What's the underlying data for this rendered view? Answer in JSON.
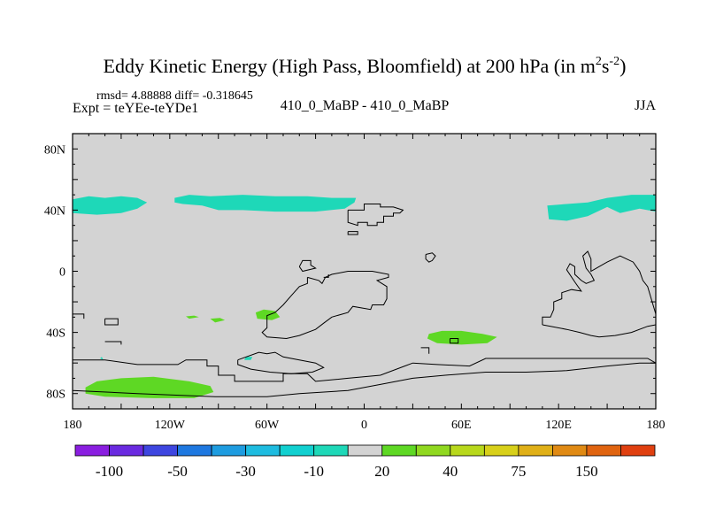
{
  "chart_data": {
    "type": "heatmap",
    "title": "Eddy Kinetic Energy (High Pass, Bloomfield) at 200 hPa (in m",
    "title_units_sup1": "2",
    "title_units_mid": "s",
    "title_units_sup2": "-2",
    "title_close": ")",
    "stats_text": "rmsd= 4.88888 diff= -0.318645",
    "expt_text": "Expt = teYEe-teYDe1",
    "center_label": "410_0_MaBP - 410_0_MaBP",
    "season": "JJA",
    "xlim": [
      -180,
      180
    ],
    "ylim": [
      -90,
      90
    ],
    "x_ticks": [
      {
        "value": -180,
        "label": "180"
      },
      {
        "value": -120,
        "label": "120W"
      },
      {
        "value": -60,
        "label": "60W"
      },
      {
        "value": 0,
        "label": "0"
      },
      {
        "value": 60,
        "label": "60E"
      },
      {
        "value": 120,
        "label": "120E"
      },
      {
        "value": 180,
        "label": "180"
      }
    ],
    "y_ticks": [
      {
        "value": 80,
        "label": "80N"
      },
      {
        "value": 40,
        "label": "40N"
      },
      {
        "value": 0,
        "label": "0"
      },
      {
        "value": -40,
        "label": "40S"
      },
      {
        "value": -80,
        "label": "80S"
      }
    ],
    "background_color": "#d3d3d3",
    "colorbar": {
      "colors": [
        "#8a1ee0",
        "#6a2ae0",
        "#3e46e0",
        "#1e78e0",
        "#1e9ce0",
        "#1ebce0",
        "#12d0d0",
        "#1ed8b8",
        "#d3d3d3",
        "#5ed824",
        "#90d820",
        "#b8d81c",
        "#d8d01a",
        "#e0b018",
        "#e08a14",
        "#e06410",
        "#e04010"
      ],
      "labels": [
        {
          "after_box": 1,
          "label": "-100"
        },
        {
          "after_box": 3,
          "label": "-50"
        },
        {
          "after_box": 5,
          "label": "-30"
        },
        {
          "after_box": 7,
          "label": "-10"
        },
        {
          "after_box": 9,
          "label": "20"
        },
        {
          "after_box": 11,
          "label": "40"
        },
        {
          "after_box": 13,
          "label": "75"
        },
        {
          "after_box": 15,
          "label": "150"
        }
      ]
    },
    "anomaly_regions": [
      {
        "name": "nh-band-west-pacific",
        "color": "#1ed8b8",
        "points": [
          [
            -180,
            47
          ],
          [
            -170,
            49
          ],
          [
            -160,
            48
          ],
          [
            -150,
            49
          ],
          [
            -140,
            48
          ],
          [
            -134,
            45
          ],
          [
            -140,
            41
          ],
          [
            -150,
            38
          ],
          [
            -165,
            37
          ],
          [
            -180,
            38
          ]
        ]
      },
      {
        "name": "nh-band-north-america",
        "color": "#1ed8b8",
        "points": [
          [
            -117,
            48
          ],
          [
            -108,
            50
          ],
          [
            -95,
            49
          ],
          [
            -75,
            50
          ],
          [
            -55,
            49
          ],
          [
            -35,
            49
          ],
          [
            -20,
            48
          ],
          [
            -5,
            48
          ],
          [
            -6,
            45
          ],
          [
            -12,
            41
          ],
          [
            -30,
            39
          ],
          [
            -55,
            39
          ],
          [
            -75,
            40
          ],
          [
            -90,
            40
          ],
          [
            -100,
            43
          ],
          [
            -112,
            44
          ],
          [
            -117,
            45
          ]
        ]
      },
      {
        "name": "nh-band-east-pacific",
        "color": "#1ed8b8",
        "points": [
          [
            113,
            43
          ],
          [
            125,
            44
          ],
          [
            138,
            45
          ],
          [
            150,
            48
          ],
          [
            165,
            50
          ],
          [
            180,
            50
          ],
          [
            180,
            39
          ],
          [
            170,
            41
          ],
          [
            158,
            38
          ],
          [
            150,
            42
          ],
          [
            138,
            36
          ],
          [
            125,
            33
          ],
          [
            114,
            34
          ]
        ]
      },
      {
        "name": "sh-patch-atlantic",
        "color": "#5ed824",
        "points": [
          [
            -67,
            -27
          ],
          [
            -62,
            -25
          ],
          [
            -55,
            -26
          ],
          [
            -52,
            -30
          ],
          [
            -57,
            -32
          ],
          [
            -66,
            -31
          ]
        ]
      },
      {
        "name": "sh-dot-a",
        "color": "#5ed824",
        "points": [
          [
            -110,
            -29.5
          ],
          [
            -105,
            -29
          ],
          [
            -102,
            -30
          ],
          [
            -108,
            -31
          ]
        ]
      },
      {
        "name": "sh-dot-b",
        "color": "#5ed824",
        "points": [
          [
            -95,
            -31
          ],
          [
            -89,
            -30.5
          ],
          [
            -86,
            -32
          ],
          [
            -92,
            -33.5
          ]
        ]
      },
      {
        "name": "sh-patch-indian",
        "color": "#5ed824",
        "points": [
          [
            40,
            -41
          ],
          [
            48,
            -39
          ],
          [
            60,
            -39
          ],
          [
            73,
            -41
          ],
          [
            82,
            -43
          ],
          [
            76,
            -47
          ],
          [
            60,
            -48
          ],
          [
            45,
            -47
          ],
          [
            39,
            -44
          ]
        ]
      },
      {
        "name": "sh-dot-c",
        "color": "#1ed8b8",
        "points": [
          [
            -73,
            -56
          ],
          [
            -69,
            -56
          ],
          [
            -70,
            -58
          ],
          [
            -74,
            -58
          ]
        ]
      },
      {
        "name": "sh-dot-d",
        "color": "#1ed8b8",
        "points": [
          [
            -163,
            -57
          ],
          [
            -162,
            -56
          ],
          [
            -161,
            -58
          ]
        ]
      },
      {
        "name": "sh-band-antarctic",
        "color": "#5ed824",
        "points": [
          [
            -172,
            -76
          ],
          [
            -165,
            -72
          ],
          [
            -150,
            -70
          ],
          [
            -130,
            -69
          ],
          [
            -108,
            -72
          ],
          [
            -95,
            -75
          ],
          [
            -93,
            -79
          ],
          [
            -105,
            -83
          ],
          [
            -130,
            -83
          ],
          [
            -160,
            -82
          ],
          [
            -172,
            -80
          ]
        ]
      }
    ],
    "coastlines": [
      [
        [
          -180,
          -58
        ],
        [
          -160,
          -58
        ],
        [
          -140,
          -61
        ],
        [
          -115,
          -61
        ],
        [
          -110,
          -58
        ],
        [
          -97,
          -58
        ],
        [
          -97,
          -62
        ],
        [
          -90,
          -62
        ],
        [
          -90,
          -68
        ],
        [
          -80,
          -68
        ],
        [
          -80,
          -72
        ],
        [
          -50,
          -72
        ],
        [
          -50,
          -67
        ],
        [
          -35,
          -67
        ],
        [
          -30,
          -72
        ],
        [
          -10,
          -70
        ],
        [
          10,
          -68
        ],
        [
          25,
          -62
        ],
        [
          30,
          -60
        ],
        [
          45,
          -61
        ],
        [
          65,
          -62
        ],
        [
          75,
          -57
        ],
        [
          95,
          -57
        ],
        [
          120,
          -57
        ],
        [
          145,
          -57
        ],
        [
          160,
          -57
        ],
        [
          175,
          -57
        ],
        [
          180,
          -60
        ]
      ],
      [
        [
          -180,
          -78
        ],
        [
          -140,
          -80
        ],
        [
          -92,
          -82
        ],
        [
          -60,
          -82
        ],
        [
          -40,
          -80
        ],
        [
          -10,
          -78
        ],
        [
          10,
          -74
        ],
        [
          30,
          -70
        ],
        [
          50,
          -68
        ],
        [
          75,
          -66
        ],
        [
          100,
          -66
        ],
        [
          125,
          -65
        ],
        [
          150,
          -62
        ],
        [
          170,
          -60
        ],
        [
          180,
          -60
        ]
      ],
      [
        [
          -78,
          -58
        ],
        [
          -65,
          -53
        ],
        [
          -60,
          -54
        ],
        [
          -55,
          -53
        ],
        [
          -50,
          -56
        ],
        [
          -40,
          -58
        ],
        [
          -30,
          -60
        ],
        [
          -25,
          -63
        ],
        [
          -32,
          -66
        ],
        [
          -45,
          -67
        ],
        [
          -58,
          -66
        ],
        [
          -70,
          -64
        ],
        [
          -78,
          -61
        ],
        [
          -78,
          -58
        ]
      ],
      [
        [
          -35,
          -4
        ],
        [
          -28,
          -6
        ],
        [
          -26,
          -8
        ],
        [
          -24,
          -4
        ],
        [
          -20,
          -2
        ],
        [
          -10,
          0
        ],
        [
          5,
          0
        ],
        [
          15,
          -2
        ],
        [
          15,
          -4
        ],
        [
          8,
          -6
        ],
        [
          14,
          -10
        ],
        [
          14,
          -18
        ],
        [
          12,
          -22
        ],
        [
          5,
          -22
        ],
        [
          4,
          -25
        ],
        [
          -7,
          -23
        ],
        [
          -10,
          -27
        ],
        [
          -20,
          -30
        ],
        [
          -25,
          -34
        ],
        [
          -30,
          -38
        ],
        [
          -40,
          -42
        ],
        [
          -48,
          -44
        ],
        [
          -60,
          -43
        ],
        [
          -63,
          -40
        ],
        [
          -60,
          -37
        ],
        [
          -60,
          -29
        ],
        [
          -55,
          -27
        ],
        [
          -50,
          -22
        ],
        [
          -45,
          -16
        ],
        [
          -40,
          -10
        ],
        [
          -35,
          -8
        ],
        [
          -35,
          -4
        ]
      ],
      [
        [
          -40,
          3
        ],
        [
          -38,
          7
        ],
        [
          -33,
          7
        ],
        [
          -33,
          4
        ],
        [
          -30,
          2
        ],
        [
          -38,
          0
        ],
        [
          -40,
          3
        ]
      ],
      [
        [
          -25,
          -4
        ],
        [
          -22,
          -4
        ],
        [
          -22,
          -2
        ]
      ],
      [
        [
          -10,
          40
        ],
        [
          0,
          40
        ],
        [
          0,
          44
        ],
        [
          10,
          44
        ],
        [
          10,
          42
        ],
        [
          18,
          42
        ],
        [
          24,
          40
        ],
        [
          22,
          38
        ],
        [
          18,
          38
        ],
        [
          18,
          36
        ],
        [
          12,
          36
        ],
        [
          12,
          32
        ],
        [
          8,
          32
        ],
        [
          8,
          30
        ],
        [
          2,
          30
        ],
        [
          2,
          32
        ],
        [
          -4,
          32
        ],
        [
          -4,
          30
        ],
        [
          -10,
          32
        ],
        [
          -10,
          40
        ]
      ],
      [
        [
          -10,
          26
        ],
        [
          -4,
          26
        ],
        [
          -4,
          24
        ],
        [
          -10,
          24
        ],
        [
          -10,
          26
        ]
      ],
      [
        [
          38,
          11
        ],
        [
          42,
          12
        ],
        [
          44,
          10
        ],
        [
          42,
          7
        ],
        [
          40,
          6
        ],
        [
          38,
          8
        ],
        [
          38,
          11
        ]
      ],
      [
        [
          110,
          -35
        ],
        [
          110,
          -30
        ],
        [
          115,
          -30
        ],
        [
          117,
          -25
        ],
        [
          117,
          -20
        ],
        [
          122,
          -18
        ],
        [
          122,
          -14
        ],
        [
          128,
          -12
        ],
        [
          134,
          -13
        ],
        [
          130,
          -7
        ],
        [
          125,
          1
        ],
        [
          127,
          5
        ],
        [
          130,
          3
        ],
        [
          130,
          -2
        ],
        [
          134,
          -6
        ],
        [
          137,
          -8
        ],
        [
          142,
          -6
        ],
        [
          140,
          -2
        ],
        [
          137,
          2
        ],
        [
          135,
          10
        ],
        [
          138,
          13
        ],
        [
          140,
          8
        ],
        [
          140,
          0
        ],
        [
          145,
          3
        ],
        [
          150,
          6
        ],
        [
          158,
          10
        ],
        [
          166,
          6
        ],
        [
          170,
          0
        ],
        [
          172,
          -6
        ],
        [
          175,
          -10
        ],
        [
          180,
          -28
        ],
        [
          180,
          -35
        ],
        [
          175,
          -36
        ],
        [
          165,
          -40
        ],
        [
          155,
          -42
        ],
        [
          145,
          -43
        ],
        [
          140,
          -42
        ],
        [
          133,
          -40
        ],
        [
          125,
          -38
        ],
        [
          110,
          -35
        ]
      ],
      [
        [
          -180,
          -28
        ],
        [
          -173,
          -28
        ],
        [
          -173,
          -31
        ]
      ],
      [
        [
          -160,
          -31
        ],
        [
          -152,
          -31
        ],
        [
          -152,
          -35
        ],
        [
          -160,
          -35
        ],
        [
          -160,
          -31
        ]
      ],
      [
        [
          -160,
          -46
        ],
        [
          -150,
          -46
        ],
        [
          -150,
          -48
        ]
      ],
      [
        [
          53,
          -44
        ],
        [
          58,
          -44
        ],
        [
          58,
          -47
        ],
        [
          53,
          -47
        ],
        [
          53,
          -44
        ]
      ],
      [
        [
          35,
          -50
        ],
        [
          40,
          -50
        ],
        [
          40,
          -54
        ]
      ]
    ]
  }
}
